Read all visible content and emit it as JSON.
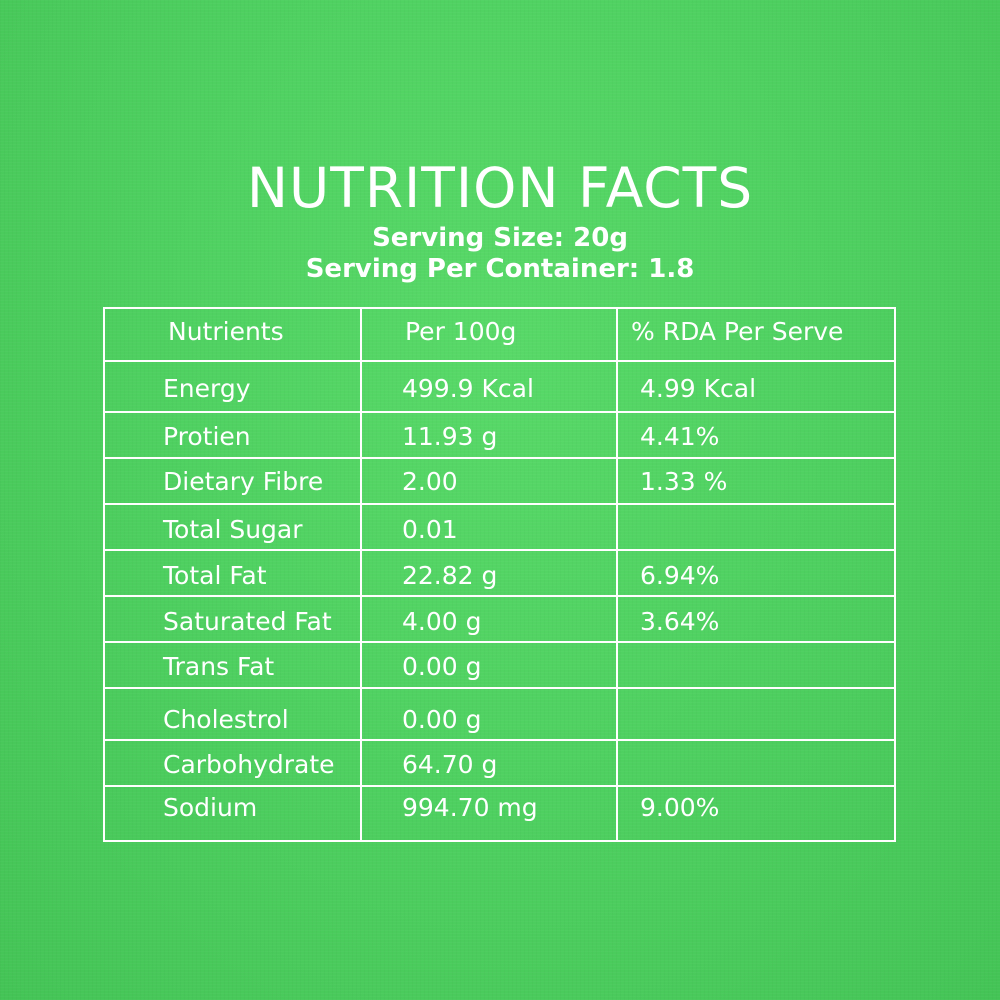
{
  "header": {
    "title": "NUTRITION FACTS",
    "serving_size": "Serving Size: 20g",
    "serving_per_container": "Serving Per Container: 1.8"
  },
  "table": {
    "columns": [
      "Nutrients",
      "Per 100g",
      "% RDA Per Serve"
    ],
    "rows": [
      [
        "Energy",
        "499.9 Kcal",
        "4.99 Kcal"
      ],
      [
        "Protien",
        "11.93 g",
        "4.41%"
      ],
      [
        "Dietary Fibre",
        "2.00",
        "1.33 %"
      ],
      [
        "Total Sugar",
        "0.01",
        ""
      ],
      [
        "Total Fat",
        "22.82 g",
        "6.94%"
      ],
      [
        "Saturated Fat",
        "4.00 g",
        "3.64%"
      ],
      [
        "Trans Fat",
        "0.00 g",
        ""
      ],
      [
        "Cholestrol",
        "0.00 g",
        ""
      ],
      [
        "Carbohydrate",
        "64.70 g",
        ""
      ],
      [
        "Sodium",
        "994.70 mg",
        "9.00%"
      ]
    ]
  },
  "colors": {
    "background": "#4fd161",
    "text": "#ffffff",
    "grid": "#ffffff"
  }
}
